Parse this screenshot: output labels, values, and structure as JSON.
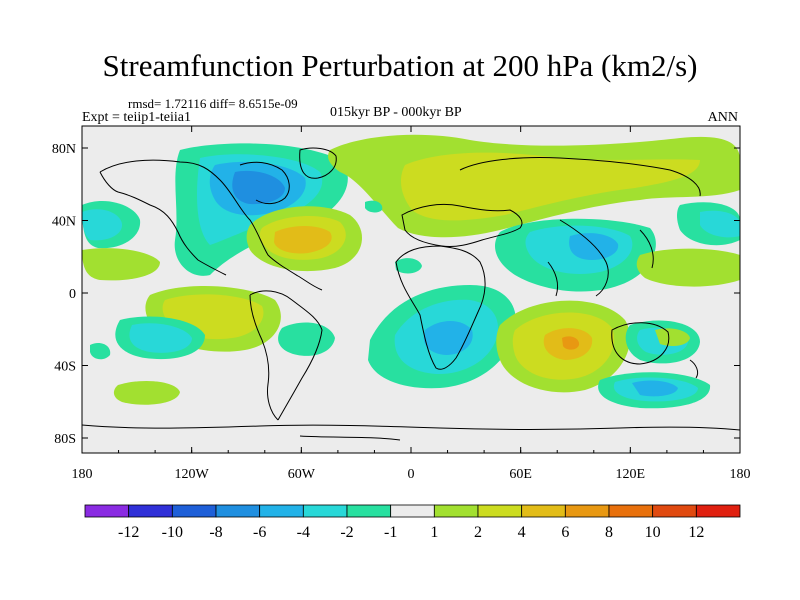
{
  "title": "Streamfunction Perturbation at 200 hPa (km2/s)",
  "stats": "rmsd= 1.72116  diff= 8.6515e-09",
  "experiment": "Expt = teiip1-teiia1",
  "period": "015kyr BP - 000kyr BP",
  "season": "ANN",
  "lat_labels": [
    "80N",
    "40N",
    "0",
    "40S",
    "80S"
  ],
  "lon_labels": [
    "180",
    "120W",
    "60W",
    "0",
    "60E",
    "120E",
    "180"
  ],
  "colorbar": {
    "labels": [
      "-12",
      "-10",
      "-8",
      "-6",
      "-4",
      "-2",
      "-1",
      "1",
      "2",
      "4",
      "6",
      "8",
      "10",
      "12"
    ],
    "colors": [
      "#8a2be2",
      "#3030d8",
      "#1e5fd8",
      "#1f8fe0",
      "#22b2e8",
      "#28d8d8",
      "#28e0a0",
      "#ececec",
      "#a2e030",
      "#ccdc20",
      "#e2bc18",
      "#e89812",
      "#e8700c",
      "#e04a10",
      "#e02010"
    ]
  }
}
